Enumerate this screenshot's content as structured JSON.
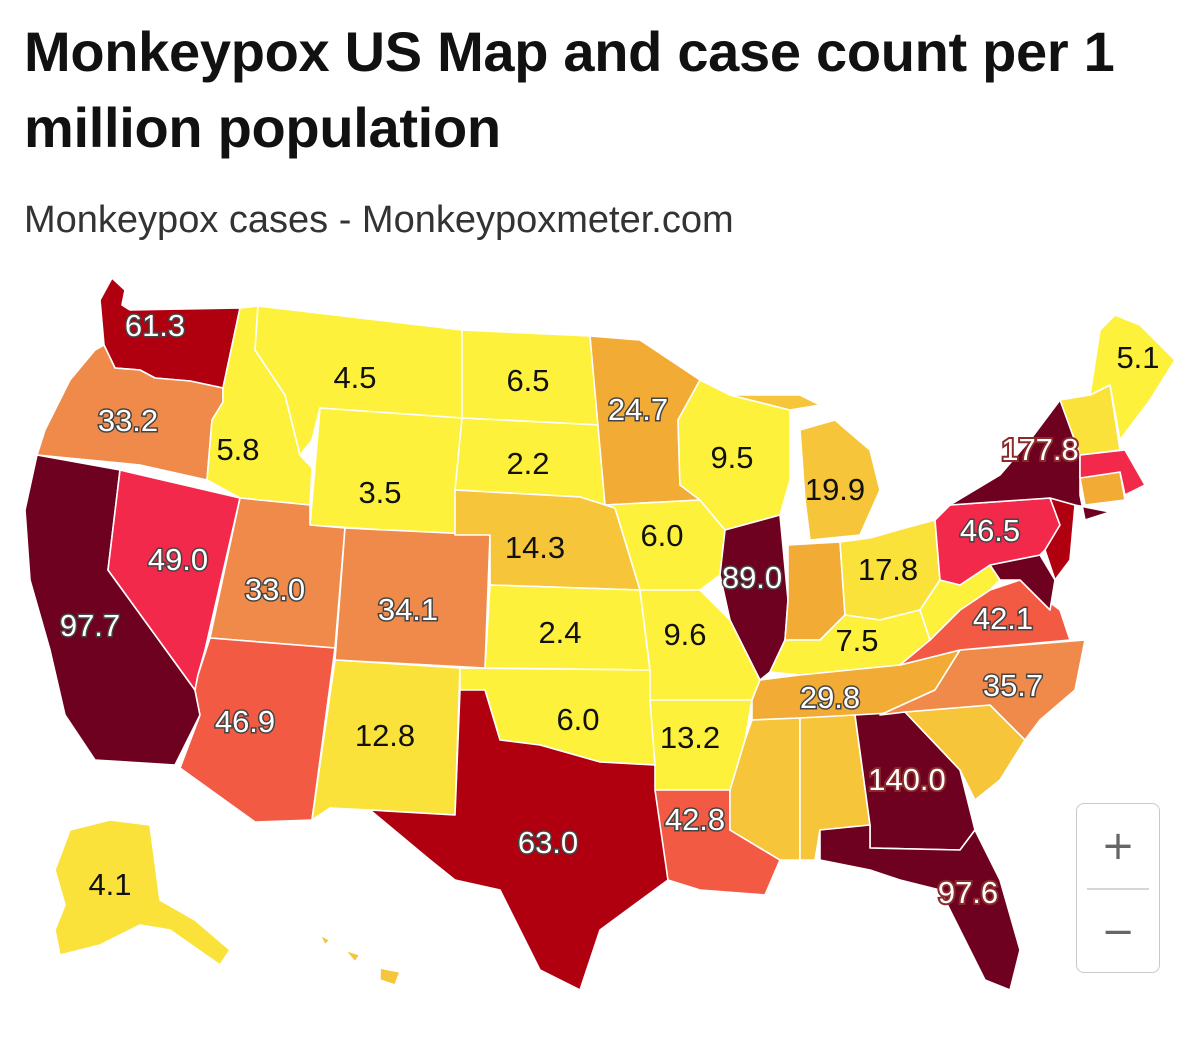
{
  "header": {
    "title": "Monkeypox US Map and case count per 1 million population",
    "subtitle": "Monkeypox cases - Monkeypoxmeter.com"
  },
  "zoom": {
    "zoom_in_label": "+",
    "zoom_out_label": "−"
  },
  "legend_colors": {
    "very_low": "#fdf13c",
    "low": "#fbe23a",
    "low_mid": "#f6c53a",
    "mid": "#f2ab34",
    "upper_mid": "#ef8a4a",
    "high": "#f25a43",
    "higher": "#f2294a",
    "very_high": "#b00010",
    "highest": "#6e0020"
  },
  "states": [
    {
      "code": "WA",
      "label": "61.3"
    },
    {
      "code": "OR",
      "label": "33.2"
    },
    {
      "code": "CA",
      "label": "97.7"
    },
    {
      "code": "NV",
      "label": "49.0"
    },
    {
      "code": "ID",
      "label": "5.8"
    },
    {
      "code": "MT",
      "label": "4.5"
    },
    {
      "code": "WY",
      "label": "3.5"
    },
    {
      "code": "UT",
      "label": "33.0"
    },
    {
      "code": "AZ",
      "label": "46.9"
    },
    {
      "code": "CO",
      "label": "34.1"
    },
    {
      "code": "NM",
      "label": "12.8"
    },
    {
      "code": "ND",
      "label": "6.5"
    },
    {
      "code": "SD",
      "label": "2.2"
    },
    {
      "code": "NE",
      "label": "14.3"
    },
    {
      "code": "KS",
      "label": "2.4"
    },
    {
      "code": "OK",
      "label": "6.0"
    },
    {
      "code": "TX",
      "label": "63.0"
    },
    {
      "code": "MN",
      "label": "24.7"
    },
    {
      "code": "IA",
      "label": "6.0"
    },
    {
      "code": "MO",
      "label": "9.6"
    },
    {
      "code": "AR",
      "label": "13.2"
    },
    {
      "code": "LA",
      "label": "42.8"
    },
    {
      "code": "WI",
      "label": "9.5"
    },
    {
      "code": "IL",
      "label": "89.0"
    },
    {
      "code": "MI",
      "label": "19.9"
    },
    {
      "code": "IN",
      "label": ""
    },
    {
      "code": "OH",
      "label": "17.8"
    },
    {
      "code": "KY",
      "label": "7.5"
    },
    {
      "code": "TN",
      "label": "29.8"
    },
    {
      "code": "MS",
      "label": ""
    },
    {
      "code": "AL",
      "label": ""
    },
    {
      "code": "GA",
      "label": "140.0"
    },
    {
      "code": "FL",
      "label": "97.6"
    },
    {
      "code": "SC",
      "label": ""
    },
    {
      "code": "NC",
      "label": "35.7"
    },
    {
      "code": "VA",
      "label": "42.1"
    },
    {
      "code": "WV",
      "label": ""
    },
    {
      "code": "PA",
      "label": "46.5"
    },
    {
      "code": "NY",
      "label": "177.8"
    },
    {
      "code": "ME",
      "label": "5.1"
    },
    {
      "code": "AK",
      "label": "4.1"
    }
  ]
}
